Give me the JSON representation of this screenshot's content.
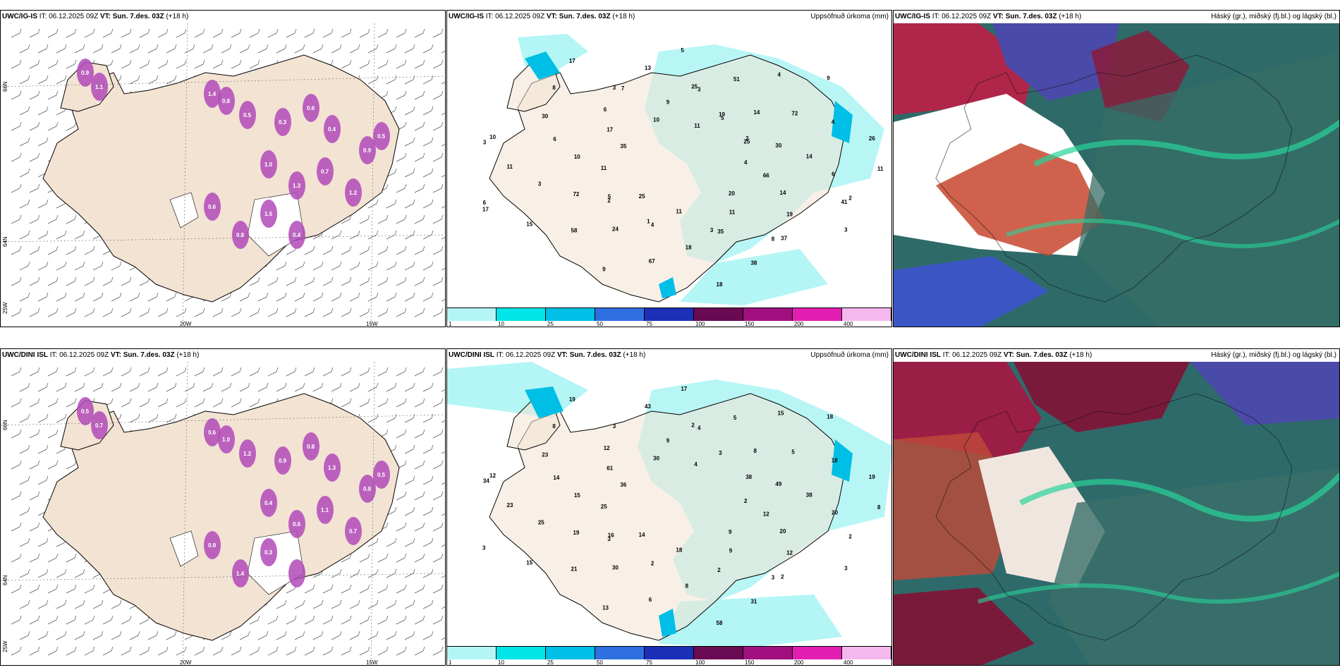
{
  "rows": [
    {
      "model": "UWC/IG-IS",
      "it_label": "IT:",
      "it_value": "06.12.2025 09Z",
      "vt_label": "VT:",
      "vt_value": "Sun. 7.des. 03Z",
      "lead": "(+18 h)"
    },
    {
      "model": "UWC/DINI ISL",
      "it_label": "IT:",
      "it_value": "06.12.2025 09Z",
      "vt_label": "VT:",
      "vt_value": "Sun. 7.des. 03Z",
      "lead": "(+18 h)"
    }
  ],
  "precip_title": "Uppsöfnuð úrkoma (mm)",
  "cloud_title": "Háský (gr.), miðský (fj.bl.) og lágský (bl.)",
  "colorbar": {
    "ticks": [
      "1",
      "10",
      "25",
      "50",
      "75",
      "100",
      "150",
      "200",
      "400"
    ],
    "colors": [
      "#b4f5f5",
      "#00e5e8",
      "#00bfe6",
      "#2f6fe0",
      "#1c2fb8",
      "#6a0a52",
      "#a0107f",
      "#e21eb3",
      "#f6b6ee"
    ]
  },
  "lon_labels": [
    "20W",
    "15W"
  ],
  "lat_labels": [
    "66N",
    "64N",
    "25W",
    "63N"
  ],
  "precip_numbers_top": [
    "4",
    "2",
    "25",
    "37",
    "3",
    "2",
    "4",
    "3",
    "2",
    "17",
    "19",
    "35",
    "30",
    "26",
    "25",
    "9",
    "19",
    "11",
    "9",
    "11",
    "6",
    "6",
    "15",
    "11",
    "11",
    "6",
    "4",
    "9",
    "10",
    "14",
    "3",
    "4",
    "18",
    "17",
    "14",
    "58",
    "5",
    "20",
    "10",
    "72",
    "67",
    "17",
    "66",
    "72",
    "51",
    "38",
    "35",
    "30",
    "24",
    "13",
    "3",
    "11",
    "14",
    "18",
    "8",
    "11",
    "5",
    "3",
    "8",
    "10",
    "25",
    "1",
    "7",
    "41",
    "6",
    "5",
    "3"
  ],
  "precip_numbers_bottom": [
    "2",
    "3",
    "2",
    "2",
    "34",
    "38",
    "2",
    "3",
    "2",
    "3",
    "3",
    "2",
    "23",
    "19",
    "14",
    "9",
    "12",
    "23",
    "18",
    "18",
    "12",
    "20",
    "15",
    "4",
    "9",
    "14",
    "18",
    "13",
    "30",
    "20",
    "25",
    "15",
    "58",
    "61",
    "38",
    "21",
    "17",
    "9",
    "15",
    "5",
    "6",
    "19",
    "12",
    "19",
    "5",
    "31",
    "36",
    "49",
    "30",
    "43",
    "3",
    "25",
    "8",
    "8",
    "8",
    "8",
    "16",
    "4",
    "3",
    "12"
  ],
  "wind_values_top": [
    "0.9",
    "1.1",
    "1.4",
    "0.8",
    "0.5",
    "0.3",
    "0.6",
    "0.4",
    "1.0",
    "1.3",
    "0.7",
    "1.2",
    "0.9",
    "0.5",
    "0.6",
    "0.8",
    "1.5",
    "0.4"
  ],
  "wind_values_bottom": [
    "0.5",
    "0.7",
    "0.6",
    "1.0",
    "1.2",
    "0.9",
    "0.8",
    "1.3",
    "0.4",
    "0.6",
    "1.1",
    "0.7",
    "0.8",
    "0.5",
    "0.9",
    "1.4",
    "0.3"
  ]
}
